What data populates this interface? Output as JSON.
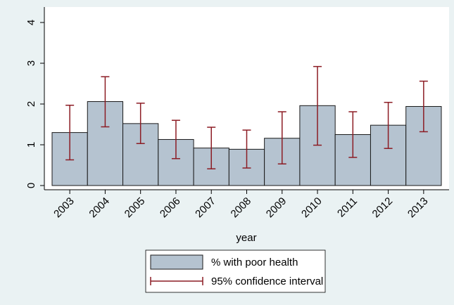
{
  "chart_data": {
    "type": "bar",
    "x_label": "year",
    "categories": [
      "2003",
      "2004",
      "2005",
      "2006",
      "2007",
      "2008",
      "2009",
      "2010",
      "2011",
      "2012",
      "2013"
    ],
    "series": [
      {
        "name": "% with poor health",
        "color": "#b5c3d0",
        "values": [
          1.3,
          2.06,
          1.52,
          1.13,
          0.92,
          0.89,
          1.16,
          1.96,
          1.25,
          1.48,
          1.94
        ]
      },
      {
        "name": "95% confidence interval",
        "color": "#8c1c24",
        "low": [
          0.63,
          1.44,
          1.03,
          0.66,
          0.41,
          0.43,
          0.53,
          0.99,
          0.69,
          0.91,
          1.32
        ],
        "high": [
          1.97,
          2.67,
          2.02,
          1.6,
          1.43,
          1.36,
          1.81,
          2.92,
          1.81,
          2.04,
          2.56
        ]
      }
    ],
    "ylim": [
      0,
      4
    ],
    "yticks": [
      0,
      1,
      2,
      3,
      4
    ]
  }
}
